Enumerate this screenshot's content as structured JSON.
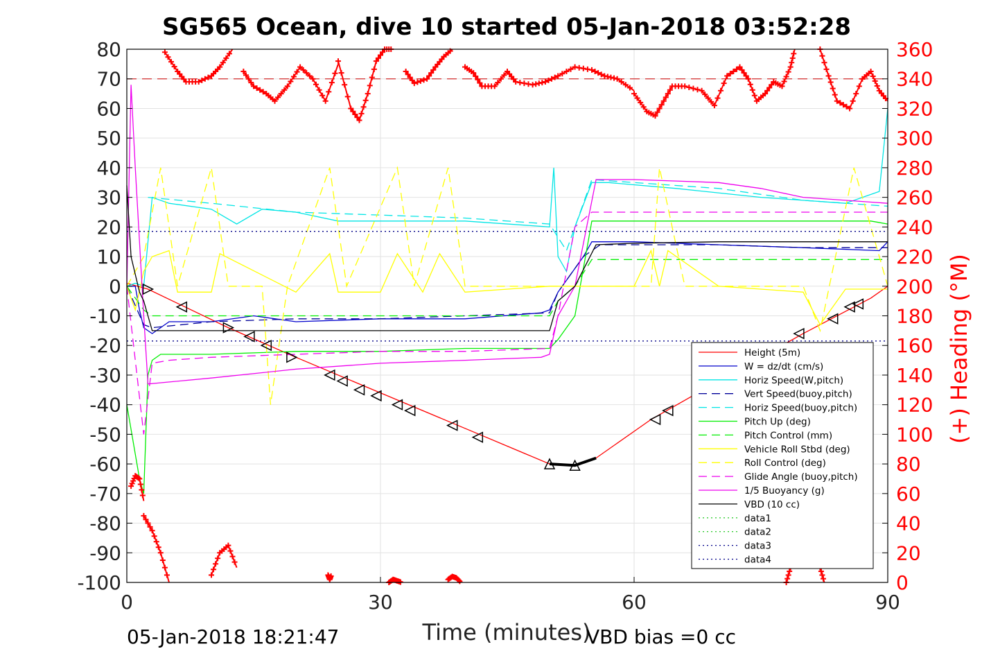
{
  "chart_data": {
    "type": "line",
    "title": "SG565 Ocean, dive 10 started 05-Jan-2018 03:52:28",
    "xlabel": "Time (minutes)",
    "ylabel_right": "(+) Heading (°M)",
    "xlim": [
      0,
      90
    ],
    "ylim": [
      -100,
      80
    ],
    "ylim_right": [
      0,
      360
    ],
    "x_ticks": [
      0,
      30,
      60,
      90
    ],
    "y_ticks": [
      80,
      70,
      60,
      50,
      40,
      30,
      20,
      10,
      0,
      -10,
      -20,
      -30,
      -40,
      -50,
      -60,
      -70,
      -80,
      -90,
      -100
    ],
    "y_right_ticks": [
      360,
      340,
      320,
      300,
      280,
      260,
      240,
      220,
      200,
      180,
      160,
      140,
      120,
      100,
      80,
      60,
      40,
      20,
      0
    ],
    "grid": true,
    "legend_position": "bottom-right",
    "footer_left": "05-Jan-2018 18:21:47",
    "footer_right": "VBD bias =0 cc",
    "colors": {
      "heading": "#ff0000",
      "height": "#ff0000",
      "w": "#0000cc",
      "horiz_speed": "#00e5e5",
      "pitch": "#00ee00",
      "roll": "#ffff00",
      "glide": "#ee00ee",
      "vbd": "#000000",
      "grid": "#e2e2e2"
    },
    "heading_reference": 340,
    "series": [
      {
        "name": "Height (5m)",
        "color": "#ff0000",
        "dash": "",
        "x": [
          0,
          2.5,
          12,
          20,
          30,
          40,
          50,
          53,
          55.5,
          62,
          70,
          80,
          88,
          90
        ],
        "y": [
          1,
          -1,
          -14,
          -24,
          -36,
          -48,
          -60,
          -60.5,
          -58,
          -45,
          -32,
          -16,
          -4,
          0
        ]
      },
      {
        "name": "W = dz/dt (cm/s)",
        "color": "#0000cc",
        "dash": "",
        "x": [
          0,
          1,
          1.5,
          2,
          3,
          5,
          10,
          15,
          20,
          30,
          40,
          49,
          50,
          51,
          52,
          54,
          55,
          60,
          70,
          80,
          89,
          90
        ],
        "y": [
          0,
          0,
          -8,
          -14,
          -16,
          -12,
          -12,
          -10,
          -12,
          -11,
          -11,
          -9,
          -8,
          -2,
          2,
          10,
          15,
          15,
          14,
          13,
          12,
          15
        ]
      },
      {
        "name": "Horiz Speed(W,pitch)",
        "color": "#00e5e5",
        "dash": "",
        "x": [
          0,
          1,
          2,
          3,
          5,
          10,
          13,
          16,
          20,
          25,
          30,
          40,
          50,
          50.5,
          51,
          52,
          53,
          55,
          57,
          65,
          75,
          85,
          89,
          90
        ],
        "y": [
          0,
          1,
          0,
          30,
          28,
          26,
          21,
          26,
          25,
          22,
          22,
          22,
          20,
          40,
          10,
          5,
          20,
          35,
          35,
          33,
          30,
          28,
          32,
          60
        ]
      },
      {
        "name": "Vert Speed(buoy,pitch)",
        "color": "#000099",
        "dash": "12 7",
        "x": [
          0,
          2,
          3,
          10,
          20,
          30,
          40,
          50,
          51,
          52,
          54,
          56,
          70,
          80,
          90
        ],
        "y": [
          0,
          -13,
          -14,
          -12,
          -11,
          -11,
          -10,
          -9,
          -2,
          2,
          10,
          14,
          14,
          13,
          13
        ]
      },
      {
        "name": "Horiz Speed(buoy,pitch)",
        "color": "#00e5e5",
        "dash": "12 7",
        "x": [
          2.5,
          10,
          20,
          30,
          40,
          50,
          52,
          55,
          60,
          70,
          80,
          90
        ],
        "y": [
          30,
          28,
          25,
          24,
          23,
          21,
          12,
          36,
          35,
          33,
          29,
          27
        ]
      },
      {
        "name": "Pitch Up (deg)",
        "color": "#00ee00",
        "dash": "",
        "x": [
          0,
          1.5,
          2,
          2.5,
          3,
          4,
          10,
          20,
          30,
          40,
          50,
          51,
          53,
          55,
          60,
          70,
          80,
          88,
          90
        ],
        "y": [
          -40,
          -65,
          -70,
          -30,
          -25,
          -23,
          -23,
          -22,
          -22,
          -21,
          -21,
          -18,
          -10,
          22,
          22,
          22,
          22,
          22,
          21
        ]
      },
      {
        "name": "Pitch Control (mm)",
        "color": "#00ee00",
        "dash": "12 7",
        "x": [
          0,
          2,
          3,
          50,
          51,
          53,
          55,
          90
        ],
        "y": [
          0,
          -8,
          -10,
          -10,
          -5,
          0,
          9,
          9
        ]
      },
      {
        "name": "Vehicle Roll Stbd (deg)",
        "color": "#ffff00",
        "dash": "",
        "x": [
          0,
          1,
          2,
          3,
          5,
          6,
          10,
          11,
          20,
          24,
          25,
          30,
          32,
          35,
          37,
          40,
          50,
          60,
          62,
          63,
          64,
          70,
          80,
          82,
          85,
          88,
          90
        ],
        "y": [
          0,
          -8,
          5,
          10,
          12,
          -2,
          -2,
          11,
          -2,
          11,
          -2,
          -2,
          11,
          -2,
          11,
          -2,
          0,
          0,
          12,
          0,
          12,
          0,
          -2,
          -13,
          -1,
          -1,
          -1
        ]
      },
      {
        "name": "Roll Control (deg)",
        "color": "#ffff00",
        "dash": "12 7",
        "x": [
          0,
          2,
          4,
          6,
          10,
          12,
          16,
          17,
          19,
          24,
          26,
          32,
          34,
          38,
          40,
          52,
          62,
          63,
          66,
          70,
          80,
          82,
          86,
          90
        ],
        "y": [
          0,
          10,
          40,
          0,
          40,
          0,
          0,
          -40,
          0,
          40,
          0,
          40,
          0,
          40,
          0,
          0,
          0,
          40,
          0,
          0,
          0,
          -15,
          40,
          0
        ]
      },
      {
        "name": "Glide Angle (buoy,pitch)",
        "color": "#ee00ee",
        "dash": "12 7",
        "x": [
          0,
          2,
          3,
          5,
          10,
          20,
          30,
          40,
          50,
          51,
          53,
          55,
          60,
          70,
          80,
          90
        ],
        "y": [
          0,
          -50,
          -26,
          -25,
          -24,
          -23,
          -22,
          -22,
          -21,
          -10,
          20,
          25,
          25,
          25,
          25,
          25
        ]
      },
      {
        "name": "1/5 Buoyancy (g)",
        "color": "#ee00ee",
        "dash": "",
        "x": [
          0,
          0.5,
          1,
          2,
          2.5,
          10,
          20,
          30,
          40,
          49,
          50,
          51,
          53,
          55.5,
          60,
          65,
          70,
          75,
          80,
          85,
          90
        ],
        "y": [
          0,
          68,
          40,
          -10,
          -33,
          -31,
          -28,
          -26,
          -25,
          -24,
          -23,
          -10,
          0,
          36,
          36,
          35.5,
          35,
          33,
          30,
          29,
          28
        ]
      },
      {
        "name": "VBD (10 cc)",
        "color": "#000000",
        "dash": "",
        "x": [
          0,
          0.5,
          1.5,
          2,
          3,
          10,
          20,
          30,
          40,
          50,
          51,
          53,
          55.5,
          60,
          70,
          80,
          90
        ],
        "y": [
          34,
          10,
          -2,
          -5,
          -15,
          -15,
          -15,
          -15,
          -15,
          -15,
          -5,
          0,
          14,
          14.5,
          15,
          15,
          15
        ]
      },
      {
        "name": "data1",
        "color": "#33cc33",
        "dash": "2 4",
        "x": [],
        "y": []
      },
      {
        "name": "data2",
        "color": "#33cc33",
        "dash": "2 4",
        "x": [],
        "y": []
      },
      {
        "name": "data3",
        "color": "#000088",
        "dash": "2 4",
        "x": [
          0,
          90
        ],
        "y": [
          18.5,
          18.5
        ]
      },
      {
        "name": "data4",
        "color": "#000088",
        "dash": "2 4",
        "x": [
          0,
          90
        ],
        "y": [
          -18.5,
          -18.5
        ]
      }
    ],
    "heading": {
      "name": "Heading",
      "color": "#ff0000",
      "segments": [
        {
          "x": [
            0.5,
            1.0,
            1.5,
            2.0
          ],
          "y": [
            65,
            72,
            70,
            55
          ]
        },
        {
          "x": [
            2.0,
            3.0,
            4.0,
            5.0
          ],
          "y": [
            45,
            35,
            20,
            0
          ]
        },
        {
          "x": [
            4.5,
            6.0,
            7.0,
            8.5,
            10.0,
            11.0,
            12.5
          ],
          "y": [
            358,
            345,
            338,
            338,
            342,
            348,
            360
          ]
        },
        {
          "x": [
            10.0,
            11.0,
            12.0,
            13.0
          ],
          "y": [
            5,
            20,
            25,
            10
          ]
        },
        {
          "x": [
            13.8,
            15.0,
            16.5,
            17.5,
            19.0,
            20.5,
            22.0,
            23.5,
            25.0
          ],
          "y": [
            345,
            335,
            330,
            325,
            335,
            348,
            340,
            325,
            350
          ]
        },
        {
          "x": [
            23.8,
            24.0,
            24.2
          ],
          "y": [
            5,
            2,
            5
          ]
        },
        {
          "x": [
            25.0,
            26.5,
            27.5,
            28.5,
            29.5,
            30.5,
            31.5
          ],
          "y": [
            352,
            320,
            312,
            330,
            352,
            360,
            360
          ]
        },
        {
          "x": [
            31.0,
            31.5,
            32.0,
            32.5
          ],
          "y": [
            0,
            2,
            1,
            0
          ]
        },
        {
          "x": [
            33.0,
            34.0,
            35.5,
            36.5,
            37.5,
            38.5
          ],
          "y": [
            345,
            337,
            340,
            348,
            355,
            360
          ]
        },
        {
          "x": [
            38.0,
            38.5,
            39.0,
            39.5
          ],
          "y": [
            2,
            4,
            3,
            0
          ]
        },
        {
          "x": [
            40.0,
            41.0,
            42.0,
            43.5,
            45.0,
            46.0,
            48.0,
            49.5,
            51.0,
            53.0,
            55.0,
            56.5,
            58.0,
            60.0
          ],
          "y": [
            348,
            344,
            335,
            335,
            345,
            338,
            336,
            338,
            342,
            348,
            346,
            342,
            340,
            332
          ]
        },
        {
          "x": [
            60.0,
            61.5,
            62.5,
            63.5,
            64.5,
            66.0,
            68.0,
            69.5,
            71.0,
            72.5,
            73.5,
            74.5,
            75.5,
            76.5
          ],
          "y": [
            330,
            318,
            315,
            325,
            335,
            335,
            332,
            322,
            342,
            348,
            340,
            325,
            330,
            338
          ]
        },
        {
          "x": [
            76.5,
            77.5,
            78.5,
            79.0
          ],
          "y": [
            338,
            335,
            348,
            360
          ]
        },
        {
          "x": [
            78.0,
            78.5,
            79.0
          ],
          "y": [
            0,
            10,
            20
          ]
        },
        {
          "x": [
            81.5,
            82.0,
            82.5
          ],
          "y": [
            20,
            10,
            0
          ]
        },
        {
          "x": [
            82.0,
            83.0,
            84.0,
            85.5,
            87.0,
            88.0,
            89.0,
            90.0
          ],
          "y": [
            360,
            342,
            325,
            320,
            340,
            345,
            332,
            325
          ]
        }
      ]
    },
    "markers": {
      "right_triangles": [
        [
          2.5,
          -1
        ],
        [
          12,
          -14
        ],
        [
          19.5,
          -24
        ]
      ],
      "left_triangles": [
        [
          6.5,
          -7
        ],
        [
          14.5,
          -17
        ],
        [
          16.5,
          -20
        ],
        [
          24,
          -30
        ],
        [
          25.5,
          -32
        ],
        [
          27.5,
          -35
        ],
        [
          29.5,
          -37
        ],
        [
          32,
          -40
        ],
        [
          33.5,
          -42
        ],
        [
          38.5,
          -47
        ],
        [
          41.5,
          -51
        ],
        [
          62.5,
          -45
        ],
        [
          64,
          -42
        ],
        [
          79.5,
          -16
        ],
        [
          83.5,
          -11
        ],
        [
          85.5,
          -7
        ],
        [
          86.5,
          -6
        ]
      ],
      "up_triangles": [
        [
          50,
          -60
        ],
        [
          53,
          -60.5
        ]
      ]
    }
  }
}
